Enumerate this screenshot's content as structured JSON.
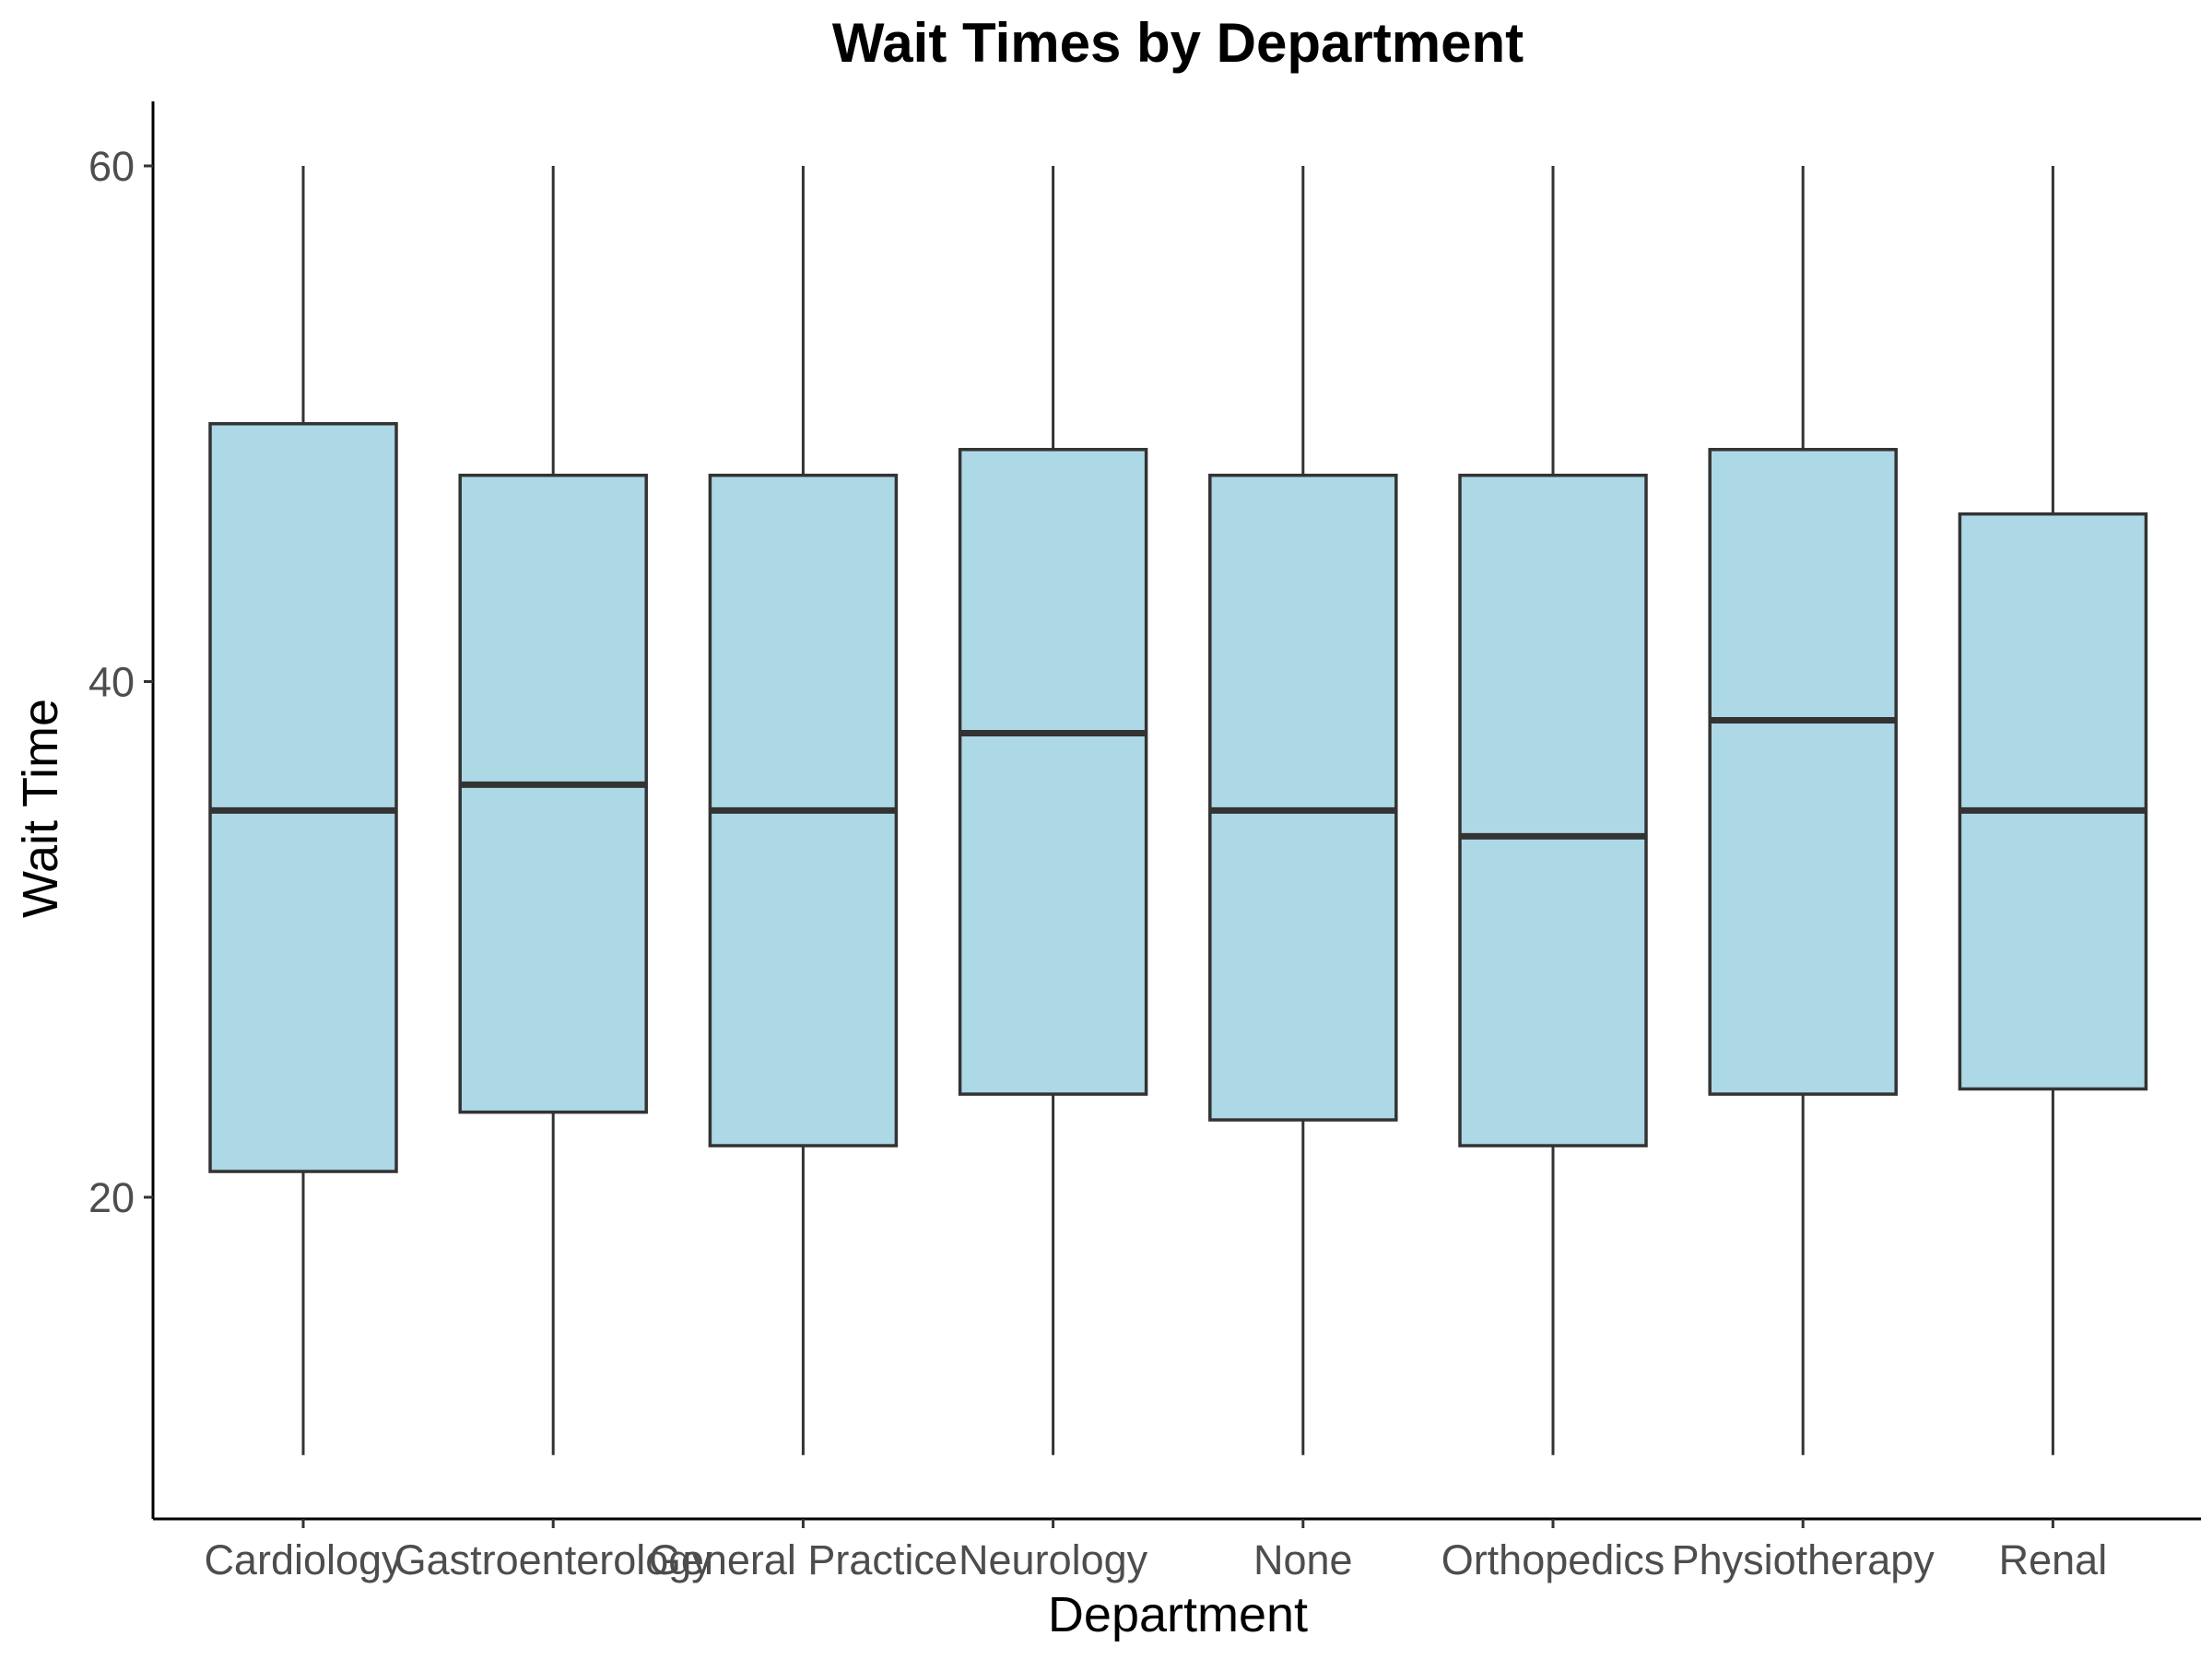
{
  "chart_data": {
    "type": "box",
    "title": "Wait Times by Department",
    "xlabel": "Department",
    "ylabel": "Wait Time",
    "categories": [
      "Cardiology",
      "Gastroenterology",
      "General Practice",
      "Neurology",
      "None",
      "Orthopedics",
      "Physiotherapy",
      "Renal"
    ],
    "boxes": [
      {
        "category": "Cardiology",
        "min": 10,
        "q1": 21.0,
        "median": 35.0,
        "q3": 50.0,
        "max": 60
      },
      {
        "category": "Gastroenterology",
        "min": 10,
        "q1": 23.3,
        "median": 36.0,
        "q3": 48.0,
        "max": 60
      },
      {
        "category": "General Practice",
        "min": 10,
        "q1": 22.0,
        "median": 35.0,
        "q3": 48.0,
        "max": 60
      },
      {
        "category": "Neurology",
        "min": 10,
        "q1": 24.0,
        "median": 38.0,
        "q3": 49.0,
        "max": 60
      },
      {
        "category": "None",
        "min": 10,
        "q1": 23.0,
        "median": 35.0,
        "q3": 48.0,
        "max": 60
      },
      {
        "category": "Orthopedics",
        "min": 10,
        "q1": 22.0,
        "median": 34.0,
        "q3": 48.0,
        "max": 60
      },
      {
        "category": "Physiotherapy",
        "min": 10,
        "q1": 24.0,
        "median": 38.5,
        "q3": 49.0,
        "max": 60
      },
      {
        "category": "Renal",
        "min": 10,
        "q1": 24.2,
        "median": 35.0,
        "q3": 46.5,
        "max": 60
      }
    ],
    "yticks": [
      20,
      40,
      60
    ],
    "ylim": [
      8.5,
      62.5
    ],
    "grid": false,
    "legend": "none",
    "colors": {
      "box_fill": "#add8e6",
      "box_stroke": "#333333",
      "axis": "#000000",
      "tick_text": "#4d4d4d"
    }
  }
}
